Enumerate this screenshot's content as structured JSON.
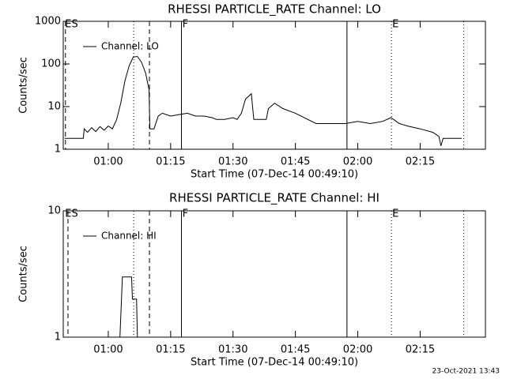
{
  "chart_data": [
    {
      "type": "line",
      "title": "RHESSI PARTICLE_RATE Channel: LO",
      "xlabel": "Start Time (07-Dec-14 00:49:10)",
      "ylabel": "Counts/sec",
      "log_y": true,
      "legend": "upper left",
      "xlim": [
        49.17,
        150.7
      ],
      "xticks": [
        {
          "value": 60,
          "label": "01:00"
        },
        {
          "value": 75,
          "label": "01:15"
        },
        {
          "value": 90,
          "label": "01:30"
        },
        {
          "value": 105,
          "label": "01:45"
        },
        {
          "value": 120,
          "label": "02:00"
        },
        {
          "value": 135,
          "label": "02:15"
        }
      ],
      "ylim": [
        1,
        1000
      ],
      "yticks": [
        1,
        10,
        100,
        1000
      ],
      "markers": [
        {
          "x": 49.7,
          "style": "dashed"
        },
        {
          "x": 66.1,
          "style": "dotted"
        },
        {
          "x": 69.9,
          "style": "dashed"
        },
        {
          "x": 77.6,
          "style": "solid"
        },
        {
          "x": 117.4,
          "style": "solid"
        },
        {
          "x": 128.1,
          "style": "dotted"
        },
        {
          "x": 145.5,
          "style": "dotted"
        }
      ],
      "annotations": [
        {
          "text": "ES",
          "x": 49.6
        },
        {
          "text": "F",
          "x": 77.8
        },
        {
          "text": "E",
          "x": 128.3
        }
      ],
      "x": [
        49.5,
        54,
        54.2,
        55,
        56,
        57,
        58,
        59,
        60,
        61,
        62,
        63,
        64,
        65,
        66,
        67,
        68,
        69,
        69.8,
        70,
        71,
        72,
        73,
        75,
        77,
        79,
        81,
        83,
        85,
        86,
        88,
        90,
        91,
        92,
        93,
        94.4,
        95,
        96,
        98,
        98.5,
        100,
        102,
        105,
        108,
        110,
        113,
        117,
        120,
        123,
        126,
        128,
        130,
        132,
        135,
        138,
        139.5,
        140,
        140.5,
        145
      ],
      "series": [
        {
          "name": "Channel: LO",
          "color": "#000000",
          "values": [
            1.8,
            1.8,
            3,
            2.5,
            3.2,
            2.6,
            3.4,
            2.8,
            3.5,
            3.0,
            5,
            12,
            40,
            90,
            145,
            150,
            110,
            60,
            25,
            3,
            3,
            6,
            7,
            6,
            6.5,
            7,
            6,
            6,
            5.5,
            5,
            5,
            5.5,
            5,
            7,
            15,
            20,
            5,
            5,
            5,
            9,
            12,
            9,
            7,
            5,
            4,
            4,
            4,
            4.5,
            4,
            4.5,
            5.5,
            4,
            3.5,
            3,
            2.5,
            2,
            1.2,
            1.8,
            1.8
          ]
        }
      ]
    },
    {
      "type": "line",
      "title": "RHESSI PARTICLE_RATE Channel: HI",
      "xlabel": "Start Time (07-Dec-14 00:49:10)",
      "ylabel": "Counts/sec",
      "log_y": true,
      "legend": "upper left",
      "xlim": [
        49.17,
        150.7
      ],
      "xticks": [
        {
          "value": 60,
          "label": "01:00"
        },
        {
          "value": 75,
          "label": "01:15"
        },
        {
          "value": 90,
          "label": "01:30"
        },
        {
          "value": 105,
          "label": "01:45"
        },
        {
          "value": 120,
          "label": "02:00"
        },
        {
          "value": 135,
          "label": "02:15"
        }
      ],
      "ylim": [
        1,
        10
      ],
      "yticks": [
        1,
        10
      ],
      "markers": [
        {
          "x": 50.3,
          "style": "dashed"
        },
        {
          "x": 66.1,
          "style": "dotted"
        },
        {
          "x": 69.9,
          "style": "dashed"
        },
        {
          "x": 77.6,
          "style": "solid"
        },
        {
          "x": 117.4,
          "style": "solid"
        },
        {
          "x": 128.1,
          "style": "dotted"
        },
        {
          "x": 145.5,
          "style": "dotted"
        }
      ],
      "annotations": [
        {
          "text": "ES",
          "x": 49.6
        },
        {
          "text": "F",
          "x": 77.8
        },
        {
          "text": "E",
          "x": 128.3
        }
      ],
      "x": [
        62.8,
        63.4,
        65.6,
        65.8,
        66.8,
        67.0
      ],
      "series": [
        {
          "name": "Channel: HI",
          "color": "#000000",
          "values": [
            1,
            3,
            3,
            2,
            2,
            1
          ]
        }
      ]
    }
  ],
  "footer": "23-Oct-2021 13:43"
}
